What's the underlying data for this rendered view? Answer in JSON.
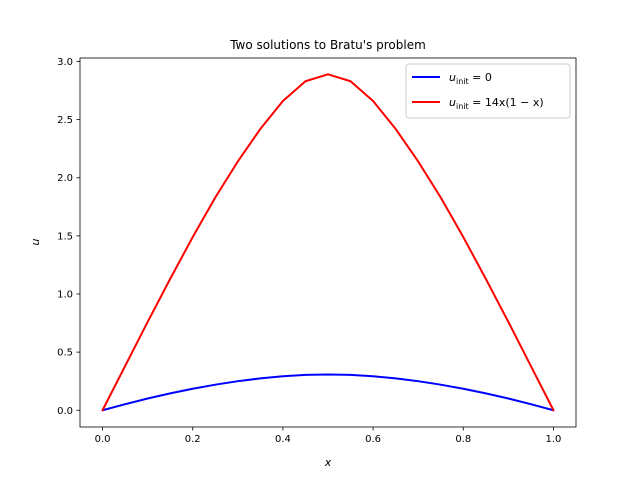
{
  "chart_data": {
    "type": "line",
    "title": "Two solutions to Bratu's problem",
    "xlabel": "x",
    "ylabel": "u",
    "xlim": [
      -0.05,
      1.05
    ],
    "ylim": [
      -0.144,
      3.03
    ],
    "xticks": [
      0.0,
      0.2,
      0.4,
      0.6,
      0.8,
      1.0
    ],
    "xtick_labels": [
      "0.0",
      "0.2",
      "0.4",
      "0.6",
      "0.8",
      "1.0"
    ],
    "yticks": [
      0.0,
      0.5,
      1.0,
      1.5,
      2.0,
      2.5,
      3.0
    ],
    "ytick_labels": [
      "0.0",
      "0.5",
      "1.0",
      "1.5",
      "2.0",
      "2.5",
      "3.0"
    ],
    "grid": false,
    "legend_position": "top-right",
    "x": [
      0.0,
      0.05,
      0.1,
      0.15,
      0.2,
      0.25,
      0.3,
      0.35,
      0.4,
      0.45,
      0.5,
      0.55,
      0.6,
      0.65,
      0.7,
      0.75,
      0.8,
      0.85,
      0.9,
      0.95,
      1.0
    ],
    "series": [
      {
        "name": "u_init = 0",
        "legend_base": "u",
        "legend_sub": "init",
        "legend_rest": " = 0",
        "color": "#0000ff",
        "values": [
          0.0,
          0.052,
          0.101,
          0.145,
          0.185,
          0.22,
          0.25,
          0.274,
          0.293,
          0.304,
          0.308,
          0.304,
          0.293,
          0.274,
          0.25,
          0.22,
          0.185,
          0.145,
          0.101,
          0.052,
          0.0
        ]
      },
      {
        "name": "u_init = 14x(1 − x)",
        "legend_base": "u",
        "legend_sub": "init",
        "legend_rest": " = 14x(1 − x)",
        "color": "#ff0000",
        "values": [
          0.0,
          0.38,
          0.76,
          1.13,
          1.49,
          1.83,
          2.14,
          2.42,
          2.66,
          2.83,
          2.89,
          2.83,
          2.66,
          2.42,
          2.14,
          1.83,
          1.49,
          1.13,
          0.76,
          0.38,
          0.0
        ]
      }
    ]
  }
}
